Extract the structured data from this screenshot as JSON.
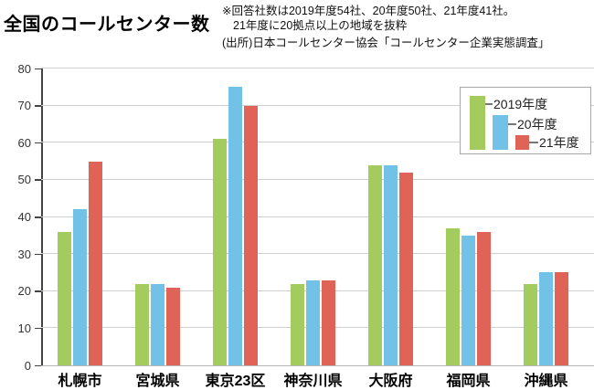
{
  "header": {
    "title": "全国のコールセンター数",
    "note_line1": "※回答社数は2019年度54社、20年度50社、21年度41社。",
    "note_line2": "21年度に20拠点以上の地域を抜粋",
    "source": "(出所)日本コールセンター協会「コールセンター企業実態調査」"
  },
  "chart_data": {
    "type": "bar",
    "title": "全国のコールセンター数",
    "categories": [
      "札幌市",
      "宮城県",
      "東京23区",
      "神奈川県",
      "大阪府",
      "福岡県",
      "沖縄県"
    ],
    "series": [
      {
        "name": "2019年度",
        "color": "#a4cb5e",
        "values": [
          36,
          22,
          61,
          22,
          54,
          37,
          22
        ]
      },
      {
        "name": "20年度",
        "color": "#72c1e7",
        "values": [
          42,
          22,
          75,
          23,
          54,
          35,
          25
        ]
      },
      {
        "name": "21年度",
        "color": "#df6356",
        "values": [
          55,
          21,
          70,
          23,
          52,
          36,
          25
        ]
      }
    ],
    "xlabel": "",
    "ylabel": "",
    "ylim": [
      0,
      80
    ],
    "ytick_step": 10,
    "yticks": [
      "0",
      "10",
      "20",
      "30",
      "40",
      "50",
      "60",
      "70",
      "80"
    ],
    "grid": true,
    "legend_position": "top-right"
  },
  "colors": {
    "series_2019": "#a4cb5e",
    "series_2020": "#72c1e7",
    "series_2021": "#df6356",
    "gridline": "#cfcfcf",
    "axis": "#444444",
    "text": "#111111"
  }
}
